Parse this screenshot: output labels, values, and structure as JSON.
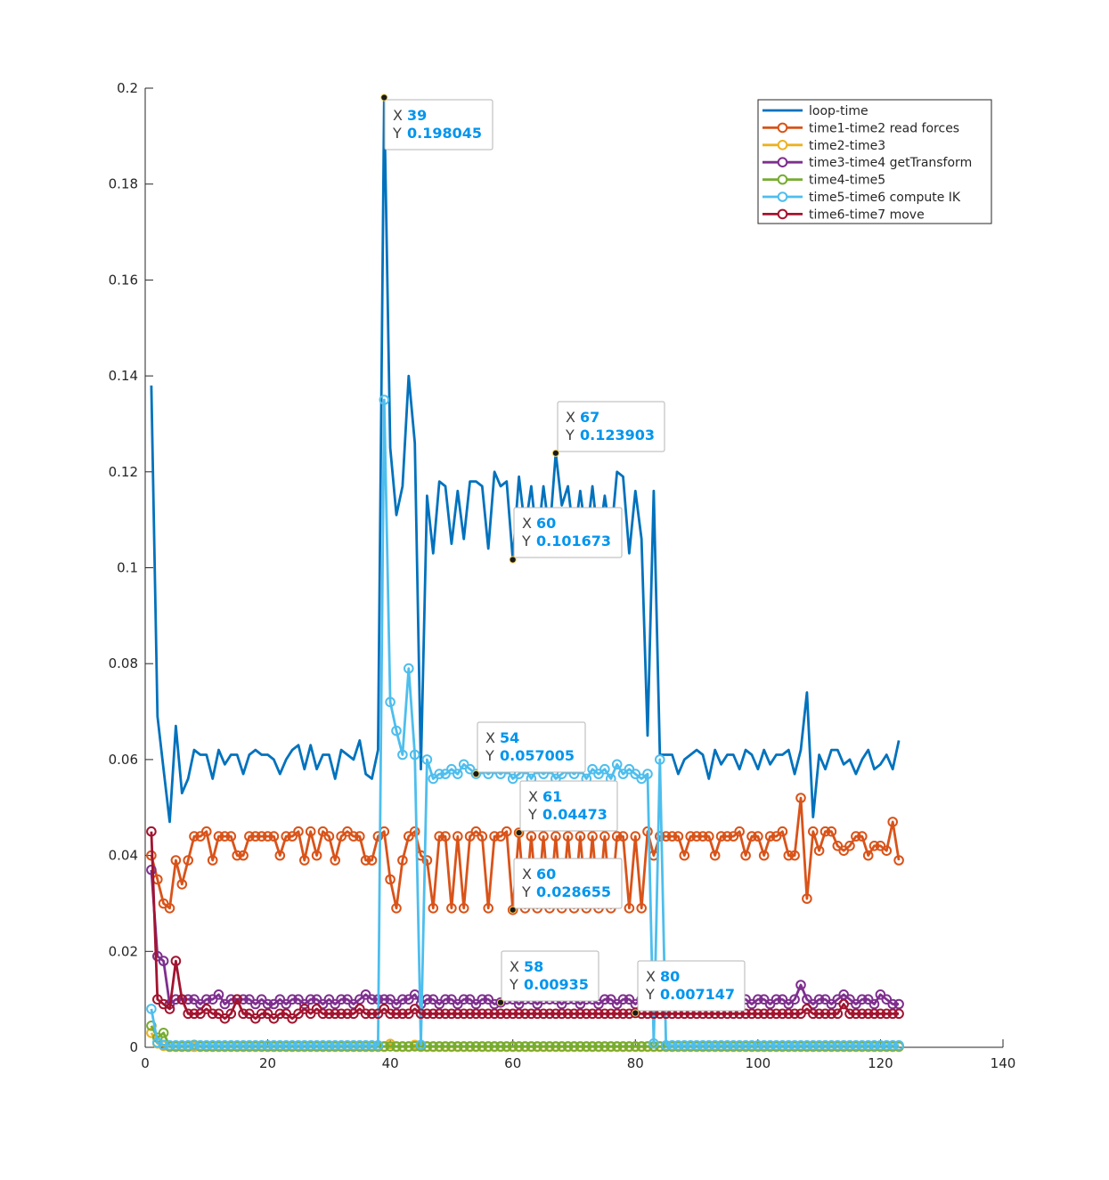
{
  "chart_data": {
    "type": "line",
    "title": "",
    "xlabel": "",
    "ylabel": "",
    "xlim": [
      0,
      140
    ],
    "ylim": [
      0,
      0.2
    ],
    "xticks": [
      "0",
      "20",
      "40",
      "60",
      "80",
      "100",
      "120",
      "140"
    ],
    "yticks": [
      "0",
      "0.02",
      "0.04",
      "0.06",
      "0.08",
      "0.1",
      "0.12",
      "0.14",
      "0.16",
      "0.18",
      "0.2"
    ],
    "grid": false,
    "legend_position": "top-right",
    "series": [
      {
        "name": "loop-time",
        "color": "#0072BD",
        "marker": false,
        "values": [
          0.138,
          0.069,
          0.058,
          0.047,
          0.067,
          0.053,
          0.056,
          0.062,
          0.061,
          0.061,
          0.056,
          0.062,
          0.059,
          0.061,
          0.061,
          0.057,
          0.061,
          0.062,
          0.061,
          0.061,
          0.06,
          0.057,
          0.06,
          0.062,
          0.063,
          0.058,
          0.063,
          0.058,
          0.061,
          0.061,
          0.056,
          0.062,
          0.061,
          0.06,
          0.064,
          0.057,
          0.056,
          0.062,
          0.198045,
          0.125,
          0.111,
          0.117,
          0.14,
          0.126,
          0.058,
          0.115,
          0.103,
          0.118,
          0.117,
          0.105,
          0.116,
          0.106,
          0.118,
          0.118,
          0.117,
          0.104,
          0.12,
          0.117,
          0.118,
          0.101673,
          0.119,
          0.108,
          0.117,
          0.105,
          0.117,
          0.107,
          0.123903,
          0.113,
          0.117,
          0.106,
          0.116,
          0.106,
          0.117,
          0.105,
          0.115,
          0.106,
          0.12,
          0.119,
          0.103,
          0.116,
          0.106,
          0.065,
          0.116,
          0.061,
          0.061,
          0.061,
          0.057,
          0.06,
          0.061,
          0.062,
          0.061,
          0.056,
          0.062,
          0.059,
          0.061,
          0.061,
          0.058,
          0.062,
          0.061,
          0.058,
          0.062,
          0.059,
          0.061,
          0.061,
          0.062,
          0.057,
          0.062,
          0.074,
          0.048,
          0.061,
          0.058,
          0.062,
          0.062,
          0.059,
          0.06,
          0.057,
          0.06,
          0.062,
          0.058,
          0.059,
          0.061,
          0.058,
          0.064
        ]
      },
      {
        "name": "time1-time2 read forces",
        "color": "#D95319",
        "marker": true,
        "values": [
          0.04,
          0.035,
          0.03,
          0.029,
          0.039,
          0.034,
          0.039,
          0.044,
          0.044,
          0.045,
          0.039,
          0.044,
          0.044,
          0.044,
          0.04,
          0.04,
          0.044,
          0.044,
          0.044,
          0.044,
          0.044,
          0.04,
          0.044,
          0.044,
          0.045,
          0.039,
          0.045,
          0.04,
          0.045,
          0.044,
          0.039,
          0.044,
          0.045,
          0.044,
          0.044,
          0.039,
          0.039,
          0.044,
          0.045,
          0.035,
          0.029,
          0.039,
          0.044,
          0.045,
          0.04,
          0.039,
          0.029,
          0.044,
          0.044,
          0.029,
          0.044,
          0.029,
          0.044,
          0.045,
          0.044,
          0.029,
          0.044,
          0.044,
          0.045,
          0.028655,
          0.04473,
          0.029,
          0.044,
          0.029,
          0.044,
          0.029,
          0.044,
          0.029,
          0.044,
          0.029,
          0.044,
          0.029,
          0.044,
          0.029,
          0.044,
          0.029,
          0.044,
          0.044,
          0.029,
          0.044,
          0.029,
          0.045,
          0.04,
          0.044,
          0.044,
          0.044,
          0.044,
          0.04,
          0.044,
          0.044,
          0.044,
          0.044,
          0.04,
          0.044,
          0.044,
          0.044,
          0.045,
          0.04,
          0.044,
          0.044,
          0.04,
          0.044,
          0.044,
          0.045,
          0.04,
          0.04,
          0.052,
          0.031,
          0.045,
          0.041,
          0.045,
          0.045,
          0.042,
          0.041,
          0.042,
          0.044,
          0.044,
          0.04,
          0.042,
          0.042,
          0.041,
          0.047,
          0.039
        ]
      },
      {
        "name": "time2-time3",
        "color": "#EDB120",
        "marker": true,
        "values": [
          0.003,
          0.0008,
          0.0003,
          0.0001,
          0.0001,
          0.0001,
          0.0001,
          0.0001,
          0.0001,
          0.0001,
          0.0001,
          0.0001,
          0.0001,
          0.0001,
          0.0001,
          0.0001,
          0.0001,
          0.0001,
          0.0001,
          0.0001,
          0.0001,
          0.0001,
          0.0001,
          0.0001,
          0.0001,
          0.0001,
          0.0001,
          0.0001,
          0.0001,
          0.0001,
          0.0001,
          0.0001,
          0.0001,
          0.0001,
          0.0001,
          0.0001,
          0.0001,
          0.0001,
          0.0001,
          0.0007,
          0.0001,
          0.0001,
          0.0001,
          0.0005,
          0.0001,
          0.0001,
          0.0001,
          0.0001,
          0.0001,
          0.0001,
          0.0001,
          0.0001,
          0.0001,
          0.0001,
          0.0001,
          0.0001,
          0.0001,
          0.0001,
          0.0001,
          0.0001,
          0.0001,
          0.0001,
          0.0001,
          0.0001,
          0.0001,
          0.0001,
          0.0001,
          0.0001,
          0.0001,
          0.0001,
          0.0001,
          0.0001,
          0.0001,
          0.0001,
          0.0001,
          0.0001,
          0.0001,
          0.0001,
          0.0001,
          0.0001,
          0.0001,
          0.0001,
          0.0001,
          0.0001,
          0.0001,
          0.0001,
          0.0001,
          0.0001,
          0.0001,
          0.0001,
          0.0001,
          0.0001,
          0.0001,
          0.0001,
          0.0001,
          0.0001,
          0.0001,
          0.0001,
          0.0001,
          0.0001,
          0.0001,
          0.0001,
          0.0001,
          0.0001,
          0.0001,
          0.0001,
          0.0001,
          0.0001,
          0.0001,
          0.0001,
          0.0001,
          0.0001,
          0.0001,
          0.0001,
          0.0001,
          0.0001,
          0.0001,
          0.0001,
          0.0001,
          0.0001,
          0.0001,
          0.0001,
          0.0001
        ]
      },
      {
        "name": "time3-time4 getTransform",
        "color": "#7E2F8E",
        "marker": true,
        "values": [
          0.037,
          0.019,
          0.018,
          0.009,
          0.01,
          0.01,
          0.01,
          0.01,
          0.009,
          0.01,
          0.01,
          0.011,
          0.009,
          0.01,
          0.01,
          0.01,
          0.01,
          0.009,
          0.01,
          0.009,
          0.009,
          0.01,
          0.009,
          0.01,
          0.01,
          0.009,
          0.01,
          0.01,
          0.009,
          0.01,
          0.009,
          0.01,
          0.01,
          0.009,
          0.01,
          0.011,
          0.01,
          0.01,
          0.01,
          0.01,
          0.009,
          0.01,
          0.01,
          0.011,
          0.009,
          0.01,
          0.01,
          0.009,
          0.01,
          0.01,
          0.009,
          0.01,
          0.01,
          0.009,
          0.01,
          0.01,
          0.009,
          0.00935,
          0.01,
          0.01,
          0.009,
          0.01,
          0.01,
          0.009,
          0.01,
          0.01,
          0.01,
          0.009,
          0.01,
          0.01,
          0.009,
          0.01,
          0.01,
          0.009,
          0.01,
          0.01,
          0.009,
          0.01,
          0.01,
          0.009,
          0.01,
          0.01,
          0.01,
          0.009,
          0.01,
          0.01,
          0.009,
          0.01,
          0.01,
          0.009,
          0.01,
          0.01,
          0.009,
          0.01,
          0.01,
          0.009,
          0.01,
          0.01,
          0.009,
          0.01,
          0.01,
          0.009,
          0.01,
          0.01,
          0.009,
          0.01,
          0.013,
          0.01,
          0.009,
          0.01,
          0.01,
          0.009,
          0.01,
          0.011,
          0.01,
          0.009,
          0.01,
          0.01,
          0.009,
          0.011,
          0.01,
          0.009,
          0.009
        ]
      },
      {
        "name": "time4-time5",
        "color": "#77AC30",
        "marker": true,
        "values": [
          0.0045,
          0.002,
          0.003,
          0.0002,
          0.0002,
          0.0002,
          0.0002,
          0.0005,
          0.0002,
          0.0002,
          0.0002,
          0.0002,
          0.0002,
          0.0002,
          0.0002,
          0.0002,
          0.0002,
          0.0002,
          0.0002,
          0.0002,
          0.0002,
          0.0002,
          0.0002,
          0.0002,
          0.0002,
          0.0002,
          0.0002,
          0.0002,
          0.0002,
          0.0002,
          0.0002,
          0.0002,
          0.0002,
          0.0002,
          0.0002,
          0.0002,
          0.0002,
          0.0002,
          0.0002,
          0.0002,
          0.0002,
          0.0002,
          0.0002,
          0.0002,
          0.0002,
          0.0002,
          0.0002,
          0.0002,
          0.0002,
          0.0002,
          0.0002,
          0.0002,
          0.0002,
          0.0002,
          0.0002,
          0.0002,
          0.0002,
          0.0002,
          0.0002,
          0.0002,
          0.0002,
          0.0002,
          0.0002,
          0.0002,
          0.0002,
          0.0002,
          0.0002,
          0.0002,
          0.0002,
          0.0002,
          0.0002,
          0.0002,
          0.0002,
          0.0002,
          0.0002,
          0.0002,
          0.0002,
          0.0002,
          0.0002,
          0.0002,
          0.0002,
          0.0002,
          0.0002,
          0.0002,
          0.0002,
          0.0002,
          0.0002,
          0.0002,
          0.0002,
          0.0002,
          0.0002,
          0.0002,
          0.0002,
          0.0002,
          0.0002,
          0.0002,
          0.0002,
          0.0002,
          0.0002,
          0.0002,
          0.0002,
          0.0002,
          0.0002,
          0.0002,
          0.0002,
          0.0002,
          0.0002,
          0.0002,
          0.0002,
          0.0002,
          0.0002,
          0.0002,
          0.0002,
          0.0002,
          0.0002,
          0.0002,
          0.0002,
          0.0002,
          0.0002,
          0.0002,
          0.0002,
          0.0002,
          0.0002
        ]
      },
      {
        "name": "time5-time6 compute IK",
        "color": "#4DBEEE",
        "marker": true,
        "values": [
          0.008,
          0.001,
          0.0005,
          0.0004,
          0.0004,
          0.0004,
          0.0004,
          0.0004,
          0.0004,
          0.0004,
          0.0004,
          0.0004,
          0.0004,
          0.0004,
          0.0004,
          0.0004,
          0.0004,
          0.0004,
          0.0004,
          0.0004,
          0.0004,
          0.0004,
          0.0004,
          0.0004,
          0.0004,
          0.0004,
          0.0004,
          0.0004,
          0.0004,
          0.0004,
          0.0004,
          0.0004,
          0.0004,
          0.0004,
          0.0004,
          0.0004,
          0.0004,
          0.0004,
          0.135,
          0.072,
          0.066,
          0.061,
          0.079,
          0.061,
          0.0005,
          0.06,
          0.056,
          0.057,
          0.057,
          0.058,
          0.057,
          0.059,
          0.058,
          0.057005,
          0.058,
          0.057,
          0.058,
          0.057,
          0.058,
          0.056,
          0.057,
          0.058,
          0.056,
          0.058,
          0.057,
          0.058,
          0.056,
          0.057,
          0.058,
          0.057,
          0.058,
          0.056,
          0.058,
          0.057,
          0.058,
          0.056,
          0.059,
          0.057,
          0.058,
          0.057,
          0.056,
          0.057,
          0.0008,
          0.06,
          0.0004,
          0.0004,
          0.0004,
          0.0004,
          0.0004,
          0.0004,
          0.0004,
          0.0004,
          0.0004,
          0.0004,
          0.0004,
          0.0004,
          0.0004,
          0.0004,
          0.0004,
          0.0004,
          0.0004,
          0.0004,
          0.0004,
          0.0004,
          0.0004,
          0.0004,
          0.0004,
          0.0004,
          0.0004,
          0.0004,
          0.0004,
          0.0004,
          0.0004,
          0.0004,
          0.0004,
          0.0004,
          0.0004,
          0.0004,
          0.0004,
          0.0004,
          0.0004,
          0.0004,
          0.0004
        ]
      },
      {
        "name": "time6-time7 move",
        "color": "#A2142F",
        "marker": true,
        "values": [
          0.045,
          0.01,
          0.009,
          0.008,
          0.018,
          0.01,
          0.007,
          0.007,
          0.007,
          0.008,
          0.007,
          0.007,
          0.006,
          0.007,
          0.01,
          0.007,
          0.007,
          0.006,
          0.007,
          0.007,
          0.006,
          0.007,
          0.007,
          0.006,
          0.007,
          0.008,
          0.007,
          0.008,
          0.007,
          0.007,
          0.007,
          0.007,
          0.007,
          0.007,
          0.008,
          0.007,
          0.007,
          0.007,
          0.008,
          0.007,
          0.007,
          0.007,
          0.007,
          0.008,
          0.007,
          0.007,
          0.007,
          0.007,
          0.007,
          0.007,
          0.007,
          0.007,
          0.007,
          0.007,
          0.007,
          0.007,
          0.007,
          0.007,
          0.007,
          0.007,
          0.007,
          0.007,
          0.007,
          0.007,
          0.007,
          0.007,
          0.007,
          0.007,
          0.007,
          0.007,
          0.007,
          0.007,
          0.007,
          0.007,
          0.007,
          0.007,
          0.007,
          0.007,
          0.007,
          0.007147,
          0.007,
          0.007,
          0.007,
          0.007,
          0.007,
          0.007,
          0.007,
          0.007,
          0.007,
          0.007,
          0.007,
          0.007,
          0.007,
          0.007,
          0.007,
          0.007,
          0.007,
          0.007,
          0.007,
          0.007,
          0.007,
          0.007,
          0.007,
          0.007,
          0.007,
          0.007,
          0.007,
          0.008,
          0.007,
          0.007,
          0.007,
          0.007,
          0.007,
          0.009,
          0.007,
          0.007,
          0.007,
          0.007,
          0.007,
          0.007,
          0.007,
          0.007,
          0.007
        ]
      }
    ],
    "datatips": [
      {
        "x": 39,
        "y": 0.198045,
        "x_label": "X",
        "y_label": "Y",
        "x_text": "39",
        "y_text": "0.198045"
      },
      {
        "x": 67,
        "y": 0.123903,
        "x_label": "X",
        "y_label": "Y",
        "x_text": "67",
        "y_text": "0.123903"
      },
      {
        "x": 60,
        "y": 0.101673,
        "x_label": "X",
        "y_label": "Y",
        "x_text": "60",
        "y_text": "0.101673"
      },
      {
        "x": 54,
        "y": 0.057005,
        "x_label": "X",
        "y_label": "Y",
        "x_text": "54",
        "y_text": "0.057005"
      },
      {
        "x": 61,
        "y": 0.04473,
        "x_label": "X",
        "y_label": "Y",
        "x_text": "61",
        "y_text": "0.04473"
      },
      {
        "x": 60,
        "y": 0.028655,
        "x_label": "X",
        "y_label": "Y",
        "x_text": "60",
        "y_text": "0.028655"
      },
      {
        "x": 58,
        "y": 0.00935,
        "x_label": "X",
        "y_label": "Y",
        "x_text": "58",
        "y_text": "0.00935"
      },
      {
        "x": 80,
        "y": 0.007147,
        "x_label": "X",
        "y_label": "Y",
        "x_text": "80",
        "y_text": "0.007147"
      }
    ]
  }
}
